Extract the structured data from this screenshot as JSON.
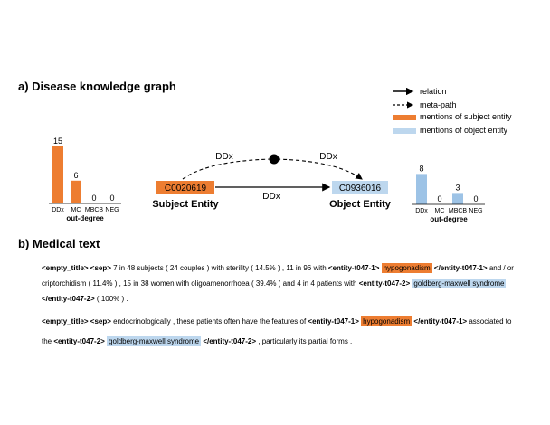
{
  "section_a": {
    "title": "a) Disease knowledge graph"
  },
  "legend": {
    "relation": "relation",
    "meta_path": "meta-path",
    "subject_mentions": "mentions of subject entity",
    "object_mentions": "mentions of object entity"
  },
  "colors": {
    "subject": "#ed7d31",
    "object": "#9dc3e6",
    "object_light": "#bdd7ee"
  },
  "graph": {
    "subject_id": "C0020619",
    "object_id": "C0936016",
    "subject_label": "Subject Entity",
    "object_label": "Object Entity",
    "relation_label": "DDx",
    "meta_path_left_label": "DDx",
    "meta_path_right_label": "DDx"
  },
  "chart_data": [
    {
      "type": "bar",
      "categories": [
        "DDx",
        "MC",
        "MBCB",
        "NEG"
      ],
      "values": [
        15,
        6,
        0,
        0
      ],
      "xlabel": "out-degree",
      "color": "#ed7d31"
    },
    {
      "type": "bar",
      "categories": [
        "DDx",
        "MC",
        "MBCB",
        "NEG"
      ],
      "values": [
        8,
        0,
        3,
        0
      ],
      "xlabel": "out-degree",
      "color": "#9dc3e6"
    }
  ],
  "section_b": {
    "title": "b) Medical text",
    "p1": {
      "l1_t1": "<empty_title> <sep>",
      "l1_t2": " 7 in 48 subjects ( 24 couples ) with sterility ( 14.5% ) , 11 in 96 with ",
      "l1_t3": "<entity-t047-1>",
      "l1_hl": "hypogonadism",
      "l1_t4": "</entity-t047-1>",
      "l1_t5": " and / or",
      "l2_t1": "criptorchidism ( 11.4% ) , 15 in 38 women with oligoamenorrhoea ( 39.4% ) and 4 in 4 patients with ",
      "l2_t2": "<entity-t047-2>",
      "l2_hl": "goldberg-maxwell syndrome",
      "l3_t1": "</entity-t047-2>",
      "l3_t2": " ( 100% ) ."
    },
    "p2": {
      "l1_t1": "<empty_title> <sep>",
      "l1_t2": " endocrinologically , these patients often have the features of ",
      "l1_t3": "<entity-t047-1>",
      "l1_hl": "hypogonadism",
      "l1_t4": "</entity-t047-1>",
      "l1_t5": " associated to",
      "l2_t1": "the ",
      "l2_t2": "<entity-t047-2>",
      "l2_hl": "goldberg-maxwell syndrome",
      "l2_t3": "</entity-t047-2>",
      "l2_t4": " , particularly its partial forms ."
    }
  }
}
